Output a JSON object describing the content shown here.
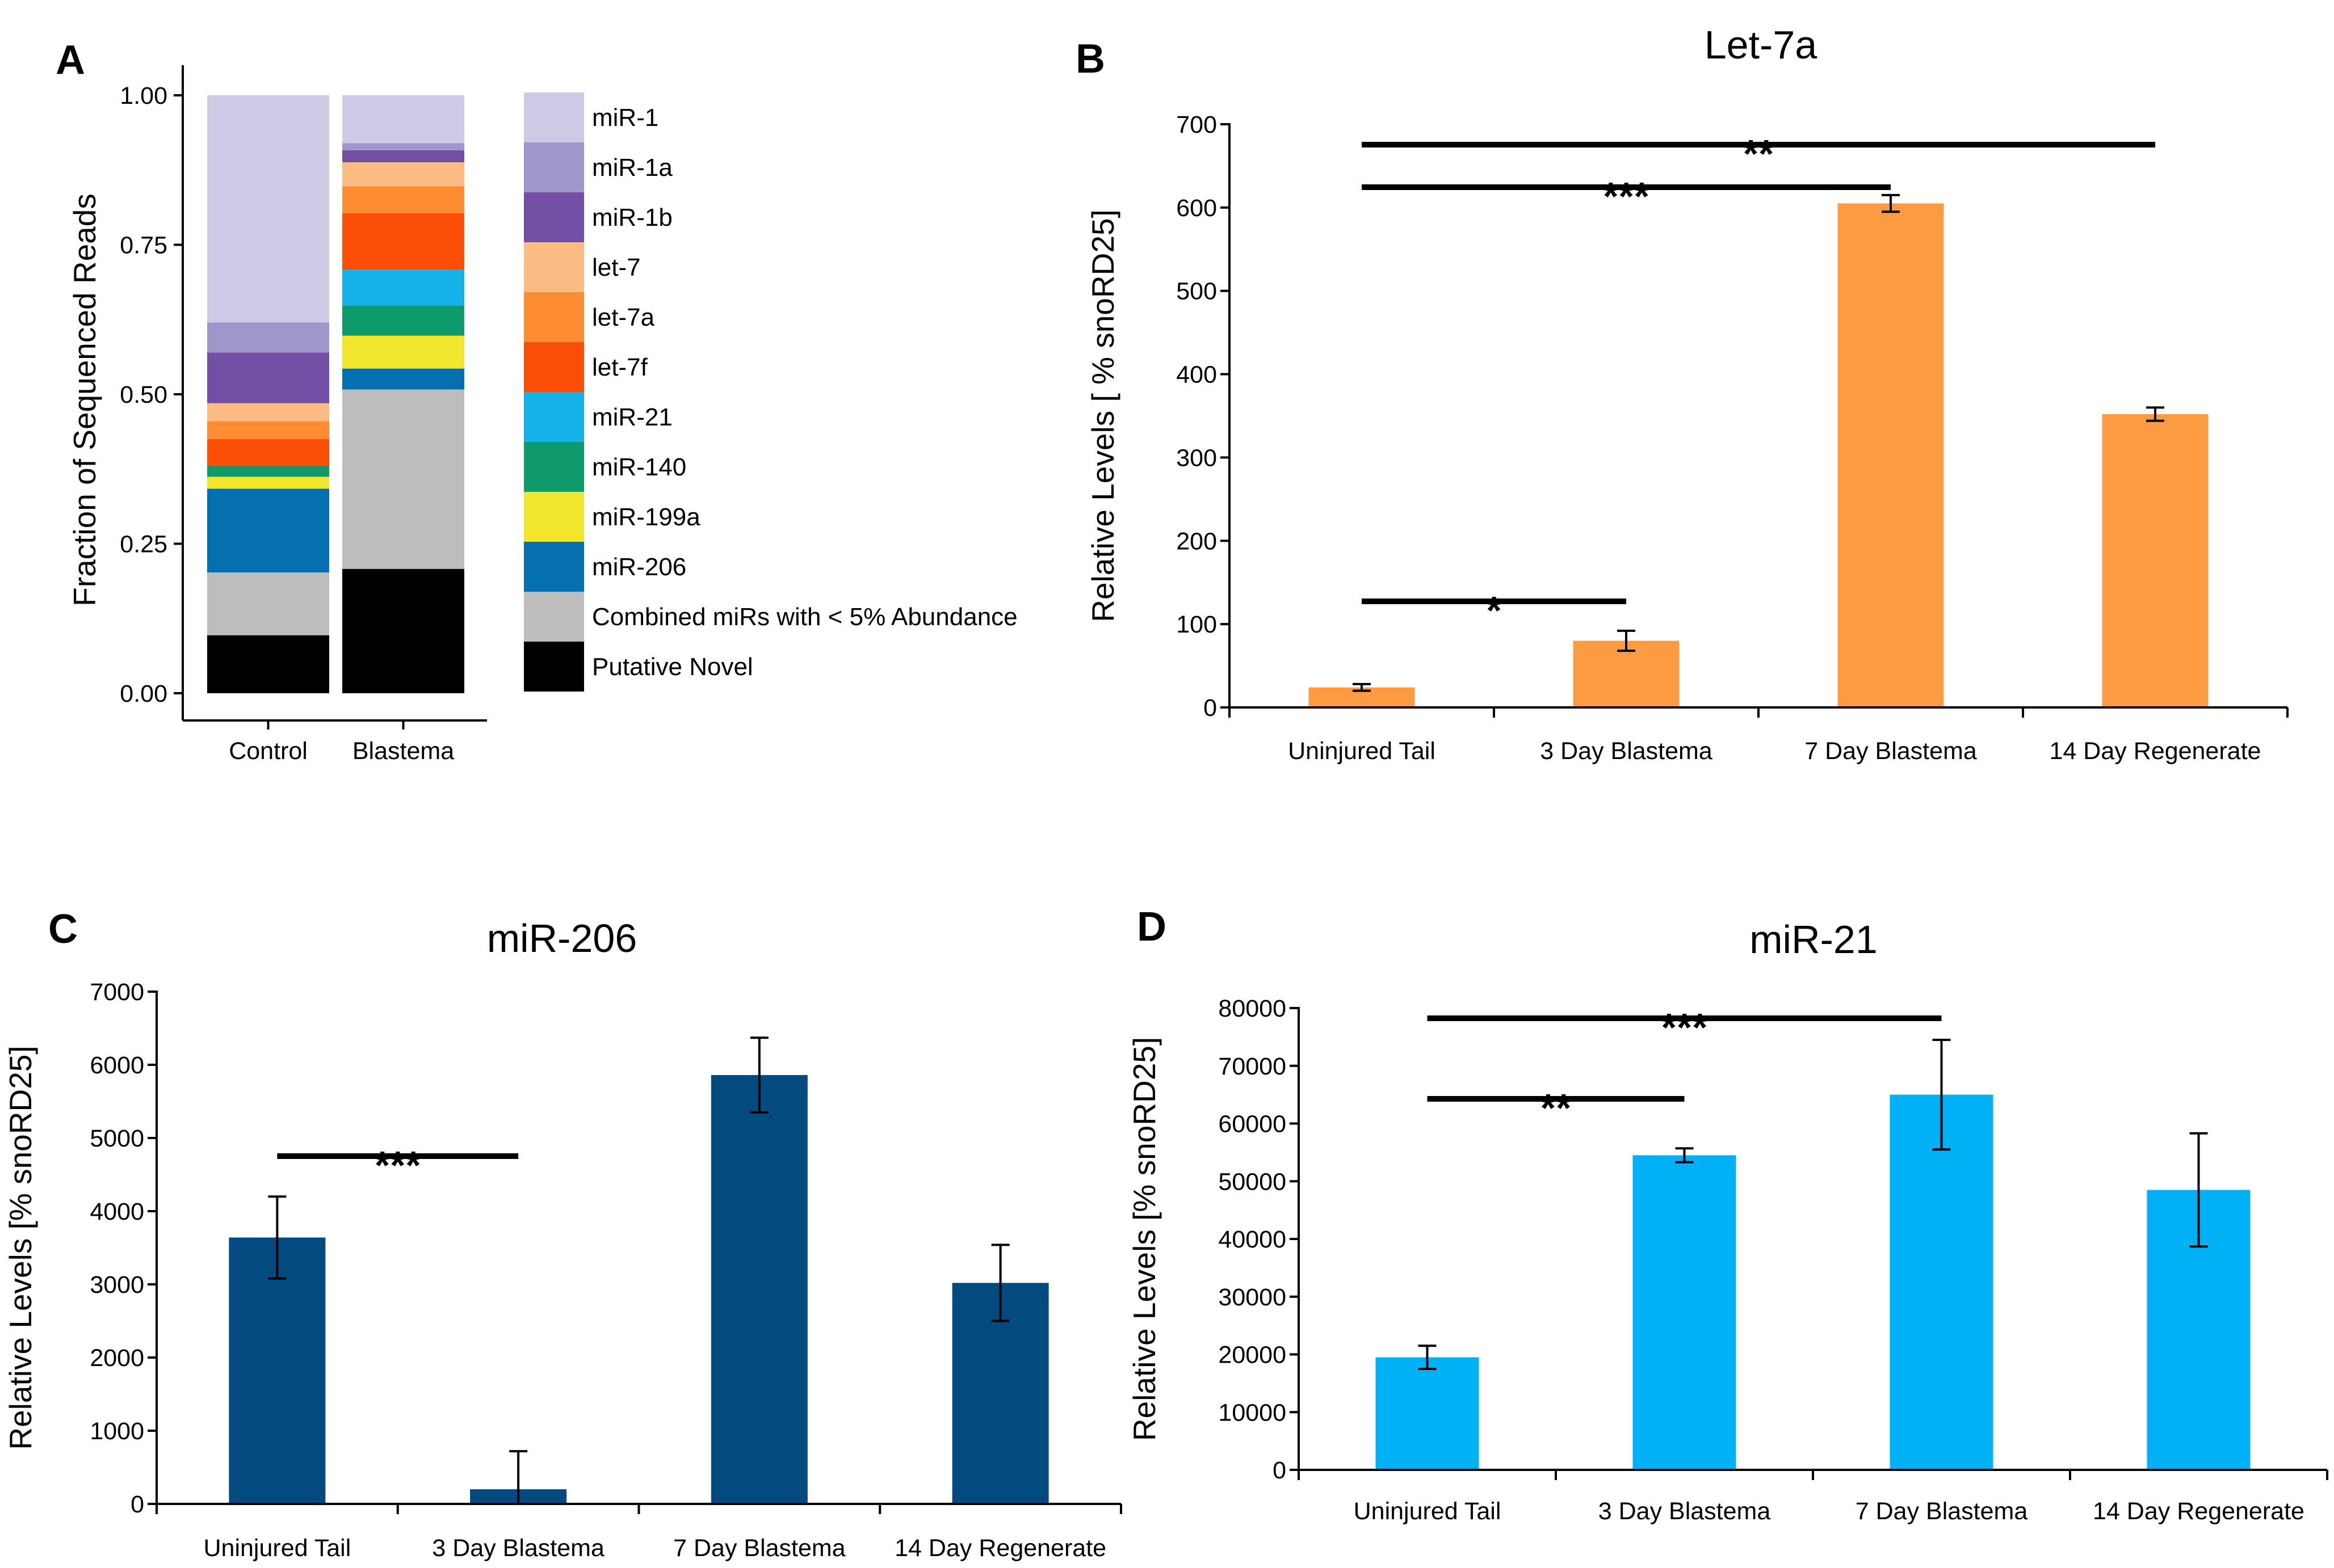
{
  "chart_data": [
    {
      "panel": "A",
      "type": "bar",
      "stacked": true,
      "title": "",
      "xlabel": "",
      "ylabel": "Fraction of Sequenced Reads",
      "ylim": [
        0,
        1
      ],
      "yticks": [
        "0.00",
        "0.25",
        "0.50",
        "0.75",
        "1.00"
      ],
      "categories": [
        "Control",
        "Blastema"
      ],
      "series": [
        {
          "name": "Putative Novel",
          "color": "#000000",
          "values": [
            0.097,
            0.208
          ]
        },
        {
          "name": "Combined miRs with < 5% Abundance",
          "color": "#bdbdbd",
          "values": [
            0.105,
            0.3
          ]
        },
        {
          "name": "miR-206",
          "color": "#0570b0",
          "values": [
            0.14,
            0.035
          ]
        },
        {
          "name": "miR-199a",
          "color": "#f2e52d",
          "values": [
            0.02,
            0.055
          ]
        },
        {
          "name": "miR-140",
          "color": "#0f9a6b",
          "values": [
            0.018,
            0.05
          ]
        },
        {
          "name": "miR-21",
          "color": "#15b2ea",
          "values": [
            0.0,
            0.06
          ]
        },
        {
          "name": "let-7f",
          "color": "#fc4e07",
          "values": [
            0.045,
            0.095
          ]
        },
        {
          "name": "let-7a",
          "color": "#fe8c33",
          "values": [
            0.03,
            0.045
          ]
        },
        {
          "name": "let-7",
          "color": "#fdbb84",
          "values": [
            0.03,
            0.04
          ]
        },
        {
          "name": "miR-1b",
          "color": "#7350a5",
          "values": [
            0.085,
            0.02
          ]
        },
        {
          "name": "miR-1a",
          "color": "#a196cc",
          "values": [
            0.05,
            0.012
          ]
        },
        {
          "name": "miR-1",
          "color": "#cccae4",
          "values": [
            0.38,
            0.08
          ]
        }
      ]
    },
    {
      "panel": "B",
      "type": "bar",
      "title": "Let-7a",
      "xlabel": "",
      "ylabel": "Relative Levels [ % snoRD25]",
      "ylim": [
        0,
        700
      ],
      "yticks": [
        "0",
        "100",
        "200",
        "300",
        "400",
        "500",
        "600",
        "700"
      ],
      "categories": [
        "Uninjured Tail",
        "3 Day Blastema",
        "7 Day Blastema",
        "14 Day Regenerate"
      ],
      "values": [
        24,
        80,
        605,
        352
      ],
      "errors": [
        4,
        12,
        10,
        8
      ],
      "color": "#fd9b43",
      "significance": [
        {
          "label": "*",
          "from": 0,
          "to": 1
        },
        {
          "label": "***",
          "from": 0,
          "to": 2
        },
        {
          "label": "**",
          "from": 0,
          "to": 3
        }
      ]
    },
    {
      "panel": "C",
      "type": "bar",
      "title": "miR-206",
      "xlabel": "",
      "ylabel": "Relative Levels [% snoRD25]",
      "ylim": [
        0,
        7000
      ],
      "yticks": [
        "0",
        "1000",
        "2000",
        "3000",
        "4000",
        "5000",
        "6000",
        "7000"
      ],
      "categories": [
        "Uninjured Tail",
        "3 Day Blastema",
        "7 Day Blastema",
        "14 Day Regenerate"
      ],
      "values": [
        3640,
        200,
        5860,
        3020
      ],
      "errors": [
        560,
        520,
        510,
        520
      ],
      "color": "#034a80",
      "significance": [
        {
          "label": "***",
          "from": 0,
          "to": 1
        }
      ]
    },
    {
      "panel": "D",
      "type": "bar",
      "title": "miR-21",
      "xlabel": "",
      "ylabel": "Relative Levels [% snoRD25]",
      "ylim": [
        0,
        80000
      ],
      "yticks": [
        "0",
        "10000",
        "20000",
        "30000",
        "40000",
        "50000",
        "60000",
        "70000",
        "80000"
      ],
      "categories": [
        "Uninjured Tail",
        "3 Day Blastema",
        "7 Day Blastema",
        "14 Day Regenerate"
      ],
      "values": [
        19500,
        54500,
        65000,
        48500
      ],
      "errors": [
        2000,
        1200,
        9500,
        9800
      ],
      "color": "#00b2f5",
      "significance": [
        {
          "label": "**",
          "from": 0,
          "to": 1
        },
        {
          "label": "***",
          "from": 0,
          "to": 2
        }
      ]
    }
  ]
}
